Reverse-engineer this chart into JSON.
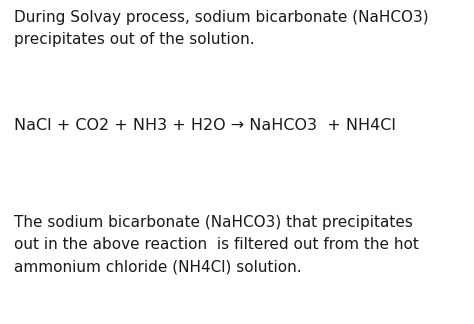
{
  "background_color": "#ffffff",
  "text_color": "#1a1a1a",
  "paragraph1_line1": "During Solvay process, sodium bicarbonate (NaHCO3)",
  "paragraph1_line2": "precipitates out of the solution.",
  "equation": "NaCl + CO2 + NH3 + H2O → NaHCO3  + NH4Cl",
  "paragraph3_line1": "The sodium bicarbonate (NaHCO3) that precipitates",
  "paragraph3_line2": "out in the above reaction  is filtered out from the hot",
  "paragraph3_line3": "ammonium chloride (NH4Cl) solution.",
  "font_size_text": 11.0,
  "font_size_eq": 11.5,
  "font_family": "DejaVu Sans",
  "figwidth": 4.74,
  "figheight": 3.24,
  "dpi": 100
}
